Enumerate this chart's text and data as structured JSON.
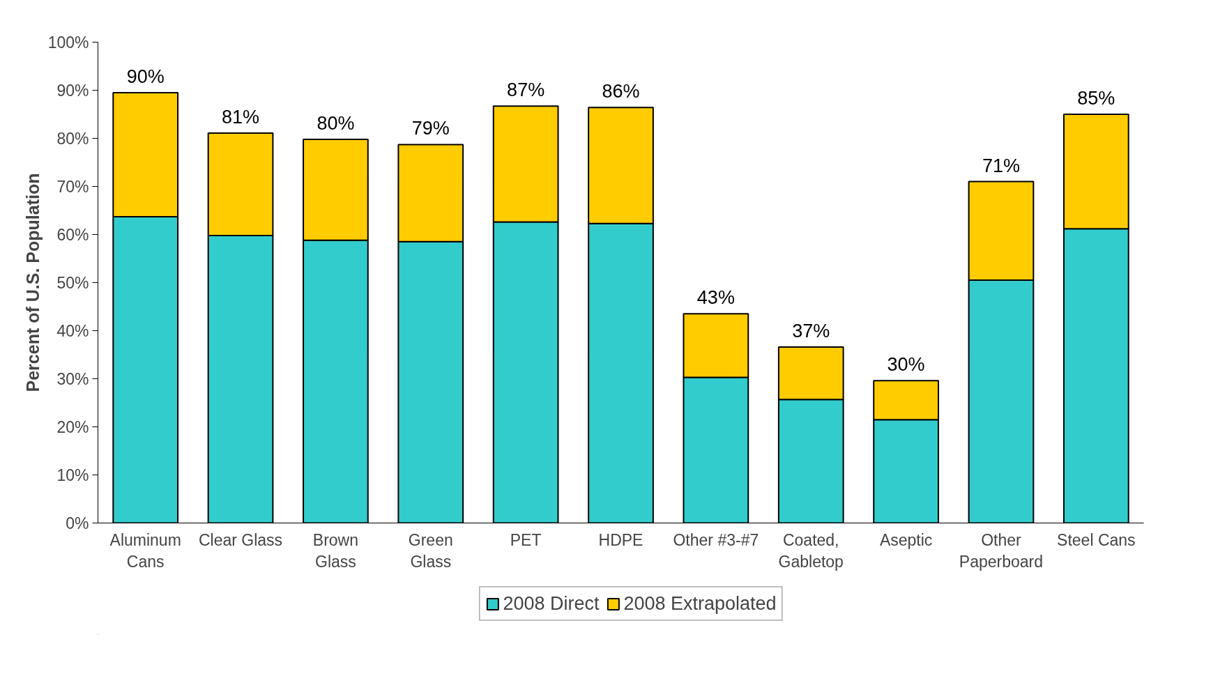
{
  "chart_data": {
    "type": "bar",
    "stacked": true,
    "ylabel": "Percent of U.S. Population",
    "categories": [
      "Aluminum\nCans",
      "Clear Glass",
      "Brown\nGlass",
      "Green\nGlass",
      "PET",
      "HDPE",
      "Other #3-#7",
      "Coated,\nGabletop",
      "Aseptic",
      "Other\nPaperboard",
      "Steel Cans"
    ],
    "series": [
      {
        "name": "2008 Direct",
        "color": "#33cccc",
        "values": [
          63.7,
          59.8,
          58.8,
          58.5,
          62.6,
          62.3,
          30.3,
          25.7,
          21.5,
          50.5,
          61.2
        ]
      },
      {
        "name": "2008 Extrapolated",
        "color": "#ffcc00",
        "values": [
          25.8,
          21.3,
          21.0,
          20.2,
          24.1,
          24.1,
          13.2,
          10.9,
          8.1,
          20.5,
          23.8
        ]
      }
    ],
    "totals": [
      "90%",
      "81%",
      "80%",
      "79%",
      "87%",
      "86%",
      "43%",
      "37%",
      "30%",
      "71%",
      "85%"
    ],
    "ylim": [
      0,
      100
    ],
    "yticks": [
      {
        "value": 0,
        "label": "0%"
      },
      {
        "value": 10,
        "label": "10%"
      },
      {
        "value": 20,
        "label": "20%"
      },
      {
        "value": 30,
        "label": "30%"
      },
      {
        "value": 40,
        "label": "40%"
      },
      {
        "value": 50,
        "label": "50%"
      },
      {
        "value": 60,
        "label": "60%"
      },
      {
        "value": 70,
        "label": "70%"
      },
      {
        "value": 80,
        "label": "80%"
      },
      {
        "value": 90,
        "label": "90%"
      },
      {
        "value": 100,
        "label": "100%"
      }
    ],
    "grid": false,
    "legend": "bottom"
  }
}
